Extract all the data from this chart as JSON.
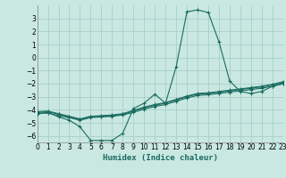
{
  "xlabel": "Humidex (Indice chaleur)",
  "bg_color": "#c9e8e2",
  "grid_color": "#a8cfc8",
  "line_color": "#1a6b60",
  "x_min": 0,
  "x_max": 23,
  "y_min": -6.5,
  "y_max": 4.0,
  "yticks": [
    -6,
    -5,
    -4,
    -3,
    -2,
    -1,
    0,
    1,
    2,
    3
  ],
  "xticks": [
    0,
    1,
    2,
    3,
    4,
    5,
    6,
    7,
    8,
    9,
    10,
    11,
    12,
    13,
    14,
    15,
    16,
    17,
    18,
    19,
    20,
    21,
    22,
    23
  ],
  "series": [
    {
      "x": [
        0,
        1,
        2,
        3,
        4,
        5,
        6,
        7,
        8,
        9,
        10,
        11,
        12,
        13,
        14,
        15,
        16,
        17,
        18,
        19,
        20,
        21,
        22,
        23
      ],
      "y": [
        -4.3,
        -4.2,
        -4.55,
        -4.8,
        -5.3,
        -6.35,
        -6.35,
        -6.35,
        -5.8,
        -3.9,
        -3.5,
        -2.8,
        -3.5,
        -0.7,
        3.5,
        3.65,
        3.45,
        1.2,
        -1.8,
        -2.6,
        -2.75,
        -2.6,
        -2.2,
        -2.0
      ]
    },
    {
      "x": [
        0,
        1,
        2,
        3,
        4,
        5,
        6,
        7,
        8,
        9,
        10,
        11,
        12,
        13,
        14,
        15,
        16,
        17,
        18,
        19,
        20,
        21,
        22,
        23
      ],
      "y": [
        -4.3,
        -4.25,
        -4.45,
        -4.6,
        -4.8,
        -4.6,
        -4.55,
        -4.5,
        -4.4,
        -4.2,
        -3.95,
        -3.75,
        -3.6,
        -3.35,
        -3.1,
        -2.9,
        -2.85,
        -2.75,
        -2.65,
        -2.55,
        -2.45,
        -2.35,
        -2.2,
        -2.0
      ]
    },
    {
      "x": [
        0,
        1,
        2,
        3,
        4,
        5,
        6,
        7,
        8,
        9,
        10,
        11,
        12,
        13,
        14,
        15,
        16,
        17,
        18,
        19,
        20,
        21,
        22,
        23
      ],
      "y": [
        -4.2,
        -4.15,
        -4.35,
        -4.55,
        -4.75,
        -4.55,
        -4.5,
        -4.45,
        -4.35,
        -4.1,
        -3.85,
        -3.65,
        -3.5,
        -3.25,
        -3.0,
        -2.8,
        -2.75,
        -2.65,
        -2.55,
        -2.45,
        -2.35,
        -2.25,
        -2.1,
        -1.9
      ]
    },
    {
      "x": [
        0,
        1,
        2,
        3,
        4,
        5,
        6,
        7,
        8,
        9,
        10,
        11,
        12,
        13,
        14,
        15,
        16,
        17,
        18,
        19,
        20,
        21,
        22,
        23
      ],
      "y": [
        -4.15,
        -4.1,
        -4.3,
        -4.5,
        -4.7,
        -4.5,
        -4.45,
        -4.4,
        -4.3,
        -4.05,
        -3.8,
        -3.6,
        -3.45,
        -3.2,
        -2.95,
        -2.75,
        -2.7,
        -2.6,
        -2.5,
        -2.4,
        -2.3,
        -2.2,
        -2.05,
        -1.85
      ]
    }
  ]
}
